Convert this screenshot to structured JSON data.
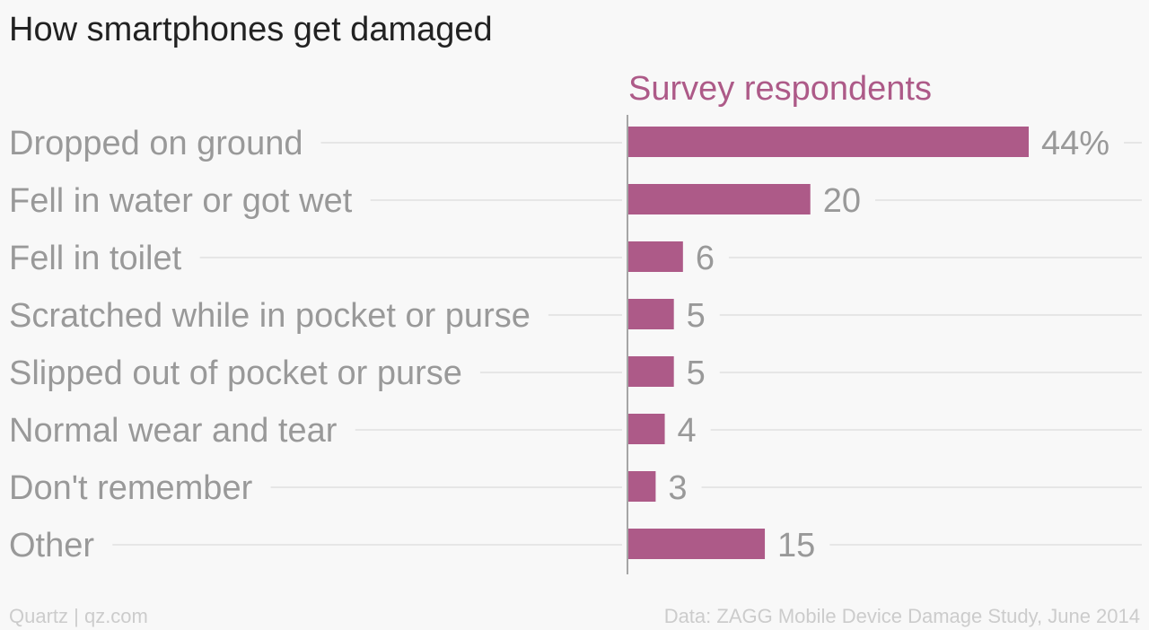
{
  "chart_data": {
    "type": "bar",
    "orientation": "horizontal",
    "title": "How smartphones get damaged",
    "series_header": "Survey respondents",
    "categories": [
      "Dropped on ground",
      "Fell in water or got wet",
      "Fell in toilet",
      "Scratched while in pocket or purse",
      "Slipped out of pocket or purse",
      "Normal wear and tear",
      "Don't remember",
      "Other"
    ],
    "values": [
      44,
      20,
      6,
      5,
      5,
      4,
      3,
      15
    ],
    "value_labels": [
      "44%",
      "20",
      "6",
      "5",
      "5",
      "4",
      "3",
      "15"
    ],
    "xlim": [
      0,
      50
    ],
    "grid": true,
    "bar_color": "#ad5a88",
    "label_color": "#999999",
    "gridline_color": "#e6e6e6",
    "axis_color": "#8a8a8a"
  },
  "footer": {
    "source_left": "Quartz | qz.com",
    "source_right": "Data: ZAGG Mobile Device Damage Study, June 2014"
  }
}
